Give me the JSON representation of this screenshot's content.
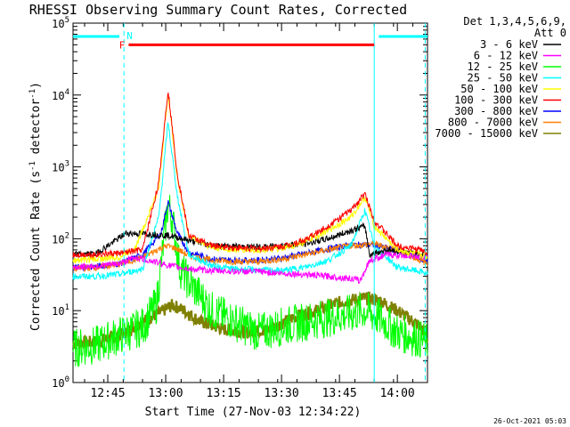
{
  "chart_data": {
    "type": "line",
    "title": "RHESSI Observing Summary Count Rates, Corrected",
    "xlabel": "Start Time (27-Nov-03 12:34:22)",
    "ylabel_main": "Corrected Count Rate (s",
    "ylabel_sup1": "-1",
    "ylabel_mid": " detector",
    "ylabel_sup2": "-1",
    "ylabel_end": ")",
    "yscale": "log",
    "xlim": [
      12.6,
      14.13
    ],
    "ylim": [
      1,
      100000
    ],
    "x_ticks": [
      {
        "x": 12.75,
        "label": "12:45"
      },
      {
        "x": 13.0,
        "label": "13:00"
      },
      {
        "x": 13.25,
        "label": "13:15"
      },
      {
        "x": 13.5,
        "label": "13:30"
      },
      {
        "x": 13.75,
        "label": "13:45"
      },
      {
        "x": 14.0,
        "label": "14:00"
      }
    ],
    "y_ticks": [
      {
        "y": 1,
        "base": "10",
        "exp": "0"
      },
      {
        "y": 10,
        "base": "10",
        "exp": "1"
      },
      {
        "y": 100,
        "base": "10",
        "exp": "2"
      },
      {
        "y": 1000,
        "base": "10",
        "exp": "3"
      },
      {
        "y": 10000,
        "base": "10",
        "exp": "4"
      },
      {
        "y": 100000,
        "base": "10",
        "exp": "5"
      }
    ],
    "legend_header": [
      "Det 1,3,4,5,6,9,",
      "Att 0"
    ],
    "legend_position": "right",
    "series": [
      {
        "name": "3 - 6 keV",
        "color": "#000000",
        "points": [
          [
            12.6,
            60
          ],
          [
            12.7,
            62
          ],
          [
            12.83,
            120
          ],
          [
            12.95,
            115
          ],
          [
            13.02,
            110
          ],
          [
            13.1,
            95
          ],
          [
            13.2,
            80
          ],
          [
            13.3,
            78
          ],
          [
            13.42,
            76
          ],
          [
            13.48,
            80
          ],
          [
            13.6,
            85
          ],
          [
            13.7,
            100
          ],
          [
            13.8,
            130
          ],
          [
            13.86,
            150
          ],
          [
            13.88,
            60
          ],
          [
            13.95,
            70
          ],
          [
            14.05,
            65
          ],
          [
            14.13,
            60
          ]
        ]
      },
      {
        "name": "6 - 12 keV",
        "color": "#ff00ff",
        "points": [
          [
            12.6,
            40
          ],
          [
            12.7,
            42
          ],
          [
            12.8,
            45
          ],
          [
            12.87,
            55
          ],
          [
            12.95,
            48
          ],
          [
            13.02,
            42
          ],
          [
            13.1,
            38
          ],
          [
            13.2,
            36
          ],
          [
            13.3,
            35
          ],
          [
            13.4,
            35
          ],
          [
            13.5,
            33
          ],
          [
            13.6,
            32
          ],
          [
            13.7,
            30
          ],
          [
            13.8,
            28
          ],
          [
            13.84,
            26
          ],
          [
            13.88,
            50
          ],
          [
            13.95,
            60
          ],
          [
            14.05,
            58
          ],
          [
            14.13,
            55
          ]
        ]
      },
      {
        "name": "12 - 25 keV",
        "color": "#00ff00",
        "points": [
          [
            12.6,
            3
          ],
          [
            12.7,
            3.3
          ],
          [
            12.8,
            4.5
          ],
          [
            12.9,
            6
          ],
          [
            12.96,
            12
          ],
          [
            13.01,
            300
          ],
          [
            13.03,
            180
          ],
          [
            13.06,
            40
          ],
          [
            13.1,
            25
          ],
          [
            13.2,
            10
          ],
          [
            13.3,
            7
          ],
          [
            13.4,
            5
          ],
          [
            13.5,
            6
          ],
          [
            13.6,
            7
          ],
          [
            13.7,
            8
          ],
          [
            13.8,
            9
          ],
          [
            13.86,
            10
          ],
          [
            13.92,
            8
          ],
          [
            14.0,
            5
          ],
          [
            14.1,
            4
          ],
          [
            14.13,
            3.5
          ]
        ]
      },
      {
        "name": "25 - 50 keV",
        "color": "#00ffff",
        "points": [
          [
            12.6,
            30
          ],
          [
            12.7,
            30
          ],
          [
            12.8,
            32
          ],
          [
            12.9,
            38
          ],
          [
            12.97,
            200
          ],
          [
            13.01,
            4200
          ],
          [
            13.05,
            400
          ],
          [
            13.1,
            60
          ],
          [
            13.2,
            42
          ],
          [
            13.3,
            38
          ],
          [
            13.4,
            37
          ],
          [
            13.5,
            36
          ],
          [
            13.6,
            40
          ],
          [
            13.7,
            50
          ],
          [
            13.8,
            80
          ],
          [
            13.86,
            250
          ],
          [
            13.9,
            80
          ],
          [
            14.0,
            40
          ],
          [
            14.1,
            35
          ],
          [
            14.13,
            33
          ]
        ]
      },
      {
        "name": "50 - 100 keV",
        "color": "#ffff00",
        "points": [
          [
            12.6,
            50
          ],
          [
            12.7,
            52
          ],
          [
            12.8,
            55
          ],
          [
            12.87,
            75
          ],
          [
            12.97,
            500
          ],
          [
            13.01,
            11000
          ],
          [
            13.05,
            700
          ],
          [
            13.1,
            110
          ],
          [
            13.2,
            75
          ],
          [
            13.3,
            70
          ],
          [
            13.4,
            70
          ],
          [
            13.5,
            72
          ],
          [
            13.6,
            90
          ],
          [
            13.7,
            130
          ],
          [
            13.8,
            200
          ],
          [
            13.86,
            380
          ],
          [
            13.9,
            150
          ],
          [
            14.0,
            70
          ],
          [
            14.1,
            60
          ],
          [
            14.13,
            55
          ]
        ]
      },
      {
        "name": "100 - 300 keV",
        "color": "#ff0000",
        "points": [
          [
            12.6,
            60
          ],
          [
            12.7,
            61
          ],
          [
            12.8,
            63
          ],
          [
            12.9,
            70
          ],
          [
            12.97,
            600
          ],
          [
            13.01,
            12000
          ],
          [
            13.05,
            800
          ],
          [
            13.1,
            110
          ],
          [
            13.2,
            80
          ],
          [
            13.3,
            75
          ],
          [
            13.4,
            73
          ],
          [
            13.5,
            78
          ],
          [
            13.6,
            95
          ],
          [
            13.7,
            150
          ],
          [
            13.8,
            250
          ],
          [
            13.86,
            420
          ],
          [
            13.9,
            180
          ],
          [
            14.0,
            80
          ],
          [
            14.1,
            70
          ],
          [
            14.13,
            65
          ]
        ]
      },
      {
        "name": "300 - 800 keV",
        "color": "#0000ff",
        "points": [
          [
            12.6,
            40
          ],
          [
            12.7,
            41
          ],
          [
            12.8,
            45
          ],
          [
            12.9,
            60
          ],
          [
            12.98,
            120
          ],
          [
            13.01,
            330
          ],
          [
            13.05,
            120
          ],
          [
            13.1,
            65
          ],
          [
            13.2,
            52
          ],
          [
            13.3,
            50
          ],
          [
            13.4,
            50
          ],
          [
            13.5,
            54
          ],
          [
            13.6,
            62
          ],
          [
            13.7,
            72
          ],
          [
            13.8,
            82
          ],
          [
            13.9,
            82
          ],
          [
            14.0,
            68
          ],
          [
            14.1,
            52
          ],
          [
            14.13,
            48
          ]
        ]
      },
      {
        "name": "800 - 7000 keV",
        "color": "#ff8000",
        "points": [
          [
            12.6,
            38
          ],
          [
            12.7,
            40
          ],
          [
            12.8,
            44
          ],
          [
            12.9,
            55
          ],
          [
            12.98,
            75
          ],
          [
            13.01,
            80
          ],
          [
            13.05,
            72
          ],
          [
            13.1,
            58
          ],
          [
            13.2,
            50
          ],
          [
            13.3,
            48
          ],
          [
            13.4,
            48
          ],
          [
            13.5,
            52
          ],
          [
            13.6,
            60
          ],
          [
            13.7,
            70
          ],
          [
            13.8,
            80
          ],
          [
            13.9,
            85
          ],
          [
            14.0,
            70
          ],
          [
            14.1,
            50
          ],
          [
            14.13,
            45
          ]
        ]
      },
      {
        "name": "7000 - 15000 keV",
        "color": "#808000",
        "points": [
          [
            12.6,
            3.5
          ],
          [
            12.7,
            3.7
          ],
          [
            12.8,
            4.5
          ],
          [
            12.9,
            7
          ],
          [
            12.98,
            9.5
          ],
          [
            13.03,
            12
          ],
          [
            13.08,
            10
          ],
          [
            13.15,
            7
          ],
          [
            13.25,
            5.5
          ],
          [
            13.35,
            5
          ],
          [
            13.45,
            5.5
          ],
          [
            13.55,
            8
          ],
          [
            13.65,
            10
          ],
          [
            13.75,
            13
          ],
          [
            13.85,
            15
          ],
          [
            13.92,
            14
          ],
          [
            14.0,
            10
          ],
          [
            14.1,
            6
          ],
          [
            14.13,
            4
          ]
        ]
      }
    ],
    "attenuator_bars": [
      {
        "x": [
          12.6,
          12.8
        ],
        "y": 55000,
        "color": "#00ffff"
      },
      {
        "x": [
          13.92,
          14.13
        ],
        "y": 55000,
        "color": "#00ffff"
      }
    ],
    "flare_bar": {
      "x": [
        12.84,
        13.9
      ],
      "y": 50000,
      "color": "#ff0000",
      "label": "F"
    },
    "night_marker": {
      "label": "N"
    },
    "vlines": [
      {
        "x": 12.82,
        "color": "#00ffff",
        "style": "dashed"
      },
      {
        "x": 13.9,
        "color": "#00ffff",
        "style": "solid"
      },
      {
        "x": 14.12,
        "color": "#00ffff",
        "style": "dashed"
      }
    ],
    "grid": false
  },
  "footer": {
    "timestamp": "26-Oct-2021 05:03"
  }
}
